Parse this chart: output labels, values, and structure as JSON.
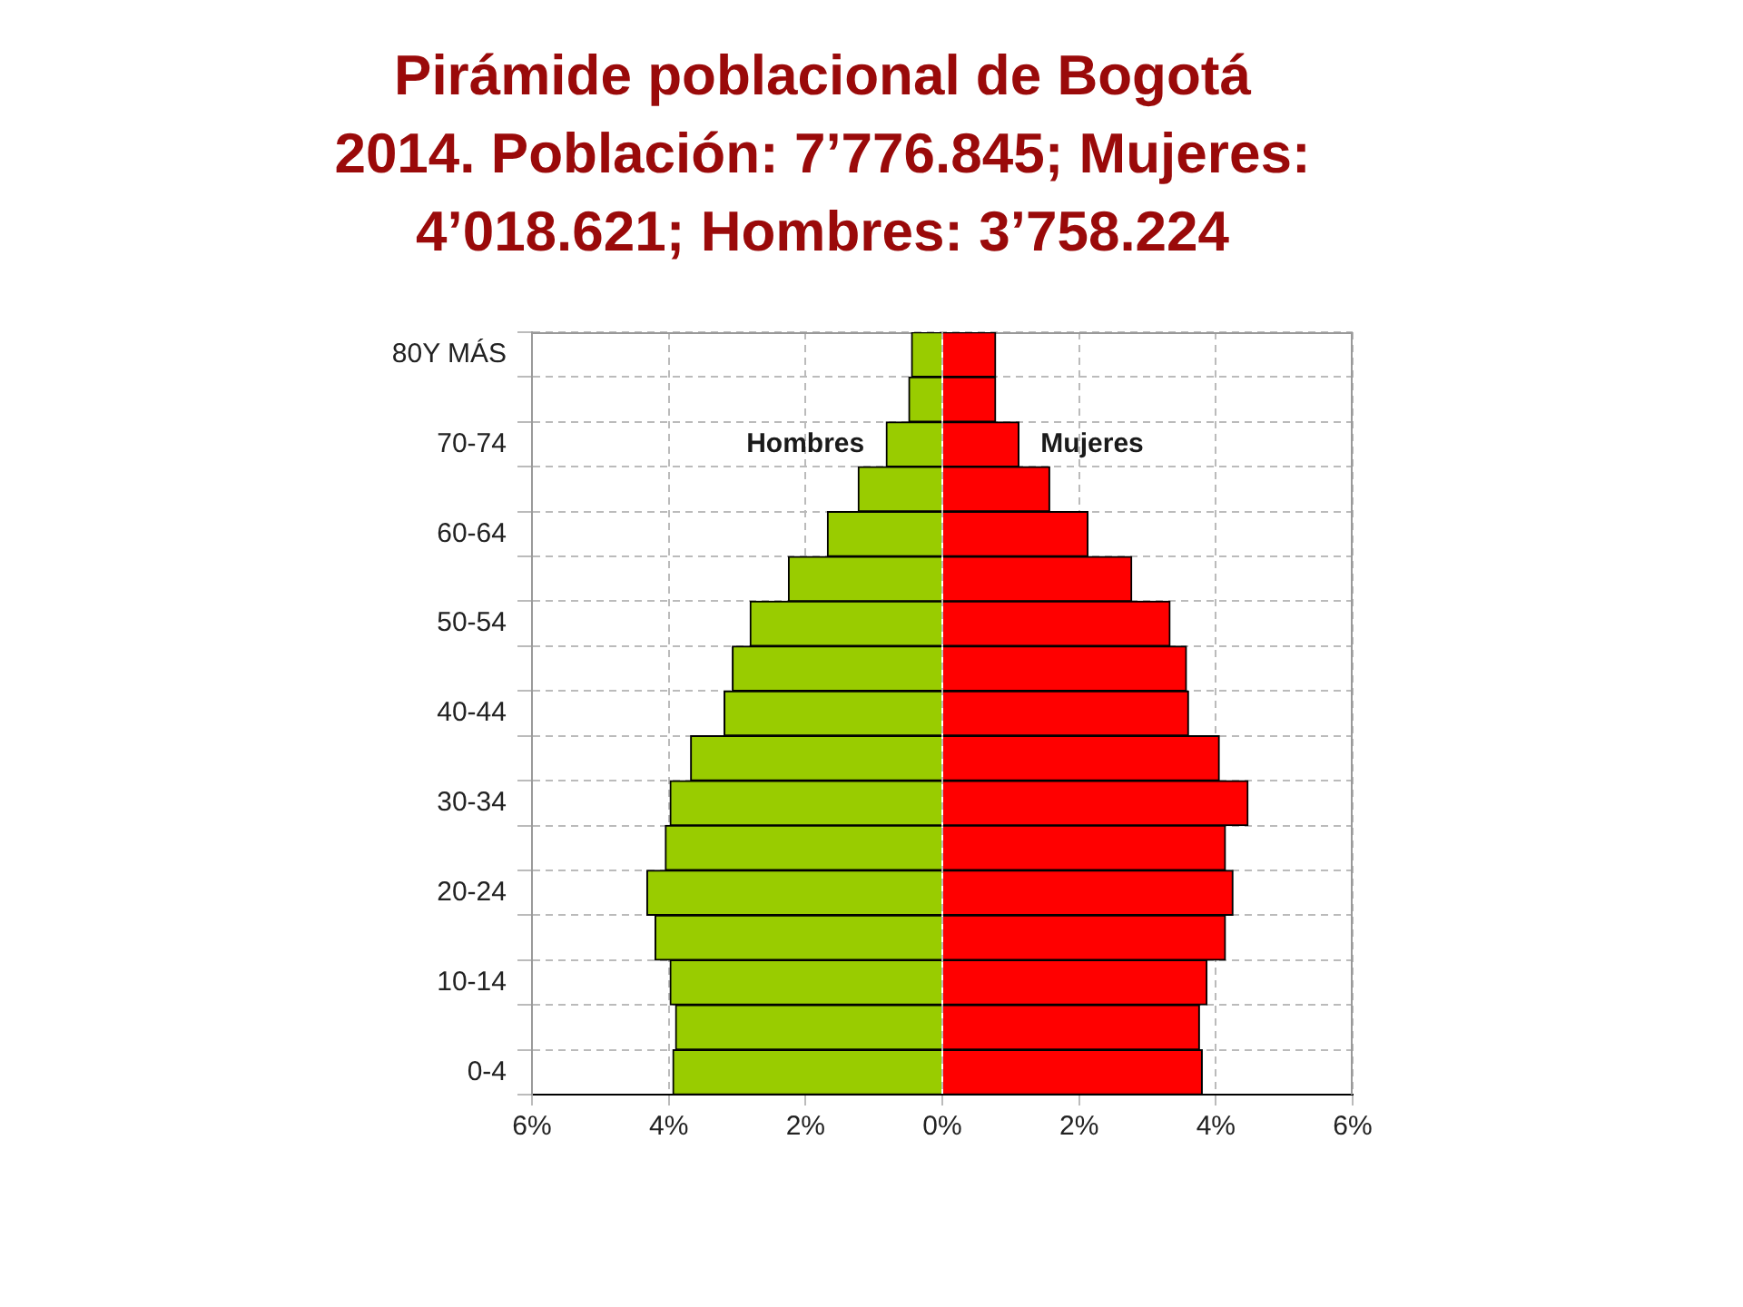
{
  "chart_data": {
    "type": "bar",
    "orientation": "horizontal",
    "stacked": true,
    "title": "Pirámide poblacional de Bogotá\n2014. Población: 7’776.845; Mujeres:\n4’018.621; Hombres: 3’758.224",
    "categories": [
      "80Y MÁS",
      null,
      "70-74",
      null,
      "60-64",
      null,
      "50-54",
      null,
      "40-44",
      null,
      "30-34",
      null,
      "20-24",
      null,
      "10-14",
      null,
      "0-4"
    ],
    "series": [
      {
        "name": "Hombres",
        "color": "#99cc00",
        "values": [
          -0.45,
          -0.49,
          -0.82,
          -1.23,
          -1.68,
          -2.25,
          -2.81,
          -3.07,
          -3.19,
          -3.68,
          -3.98,
          -4.05,
          -4.32,
          -4.2,
          -3.98,
          -3.9,
          -3.94
        ]
      },
      {
        "name": "Mujeres",
        "color": "#ff0000",
        "values": [
          0.78,
          0.78,
          1.12,
          1.57,
          2.13,
          2.77,
          3.33,
          3.57,
          3.6,
          4.05,
          4.47,
          4.14,
          4.25,
          4.14,
          3.87,
          3.76,
          3.8
        ]
      }
    ],
    "xlim": [
      -6,
      6
    ],
    "xticks": [
      {
        "value": -6,
        "label": "6%"
      },
      {
        "value": -4,
        "label": "4%"
      },
      {
        "value": -2,
        "label": "2%"
      },
      {
        "value": 0,
        "label": "0%"
      },
      {
        "value": 2,
        "label": "2%"
      },
      {
        "value": 4,
        "label": "4%"
      },
      {
        "value": 6,
        "label": "6%"
      }
    ],
    "grid": true,
    "legend": false
  }
}
